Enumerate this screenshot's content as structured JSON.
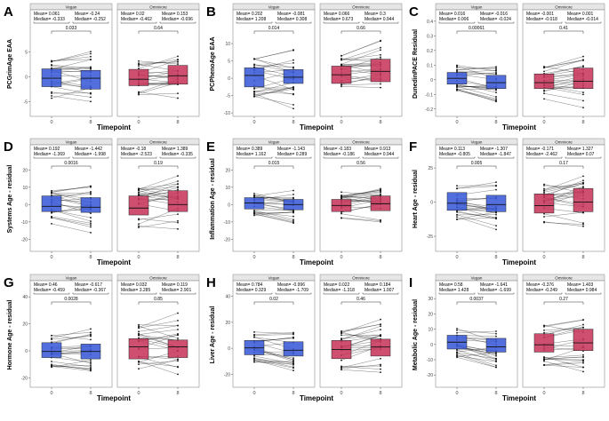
{
  "figure": {
    "x_axis_title": "Timepoint",
    "group_labels": [
      "Vegan",
      "Omnivore"
    ],
    "colors": {
      "vegan": "#3B5BD9",
      "omnivore": "#C8375C",
      "strip": "#E6E6E6",
      "border": "#8A8A8A"
    }
  },
  "chart_data": [
    {
      "type": "box",
      "panel_letter": "A",
      "ylabel": "PCGrimAge EAA",
      "categories": [
        "0",
        "8"
      ],
      "yticks": [
        -5,
        0,
        5
      ],
      "ylim": [
        -8,
        13
      ],
      "vegan": {
        "title": "Vegan",
        "stats": [
          "Mean= 0.061",
          "Mean= -0.24",
          "Median= -0.333",
          "Median= -0.252"
        ],
        "pvalue": "0.033",
        "box0": [
          -2.0,
          -0.3,
          1.6
        ],
        "box1": [
          -2.5,
          -0.3,
          1.3
        ]
      },
      "omnivore": {
        "title": "Omnivore",
        "stats": [
          "Mean= 0.02",
          "Mean= 0.153",
          "Median= -0.462",
          "Median= -0.696"
        ],
        "pvalue": "0.64",
        "box0": [
          -1.8,
          -0.5,
          1.5
        ],
        "box1": [
          -1.5,
          0.2,
          2.3
        ]
      }
    },
    {
      "type": "box",
      "panel_letter": "B",
      "ylabel": "PCPhenoAge EAA",
      "categories": [
        "0",
        "8"
      ],
      "yticks": [
        -10,
        -5,
        0,
        5,
        10
      ],
      "ylim": [
        -11,
        19
      ],
      "vegan": {
        "title": "Vegan",
        "stats": [
          "Mean= 0.202",
          "Mean= -0.081",
          "Median= 1.208",
          "Median= 0.308"
        ],
        "pvalue": "0.014",
        "box0": [
          -2.5,
          0.8,
          3.0
        ],
        "box1": [
          -1.5,
          0.3,
          2.5
        ]
      },
      "omnivore": {
        "title": "Omnivore",
        "stats": [
          "Mean= 0.066",
          "Mean= 0.3",
          "Median= 0.673",
          "Median= 0.944"
        ],
        "pvalue": "0.66",
        "box0": [
          -1.5,
          1.0,
          3.5
        ],
        "box1": [
          -1.0,
          2.0,
          5.5
        ]
      }
    },
    {
      "type": "box",
      "panel_letter": "C",
      "ylabel": "DunedinPACE Residual",
      "categories": [
        "0",
        "8"
      ],
      "yticks": [
        -0.2,
        -0.1,
        0.0,
        0.1,
        0.2,
        0.3,
        0.4
      ],
      "ylim": [
        -0.25,
        0.46
      ],
      "vegan": {
        "title": "Vegan",
        "stats": [
          "Mean= 0.016",
          "Mean= -0.016",
          "Median= 0.006",
          "Median= -0.024"
        ],
        "pvalue": "0.00061",
        "box0": [
          -0.03,
          0.01,
          0.05
        ],
        "box1": [
          -0.06,
          -0.02,
          0.03
        ]
      },
      "omnivore": {
        "title": "Omnivore",
        "stats": [
          "Mean= -0.001",
          "Mean= 0.001",
          "Median= -0.018",
          "Median= -0.014"
        ],
        "pvalue": "0.41",
        "box0": [
          -0.06,
          -0.02,
          0.04
        ],
        "box1": [
          -0.06,
          -0.01,
          0.08
        ]
      }
    },
    {
      "type": "box",
      "panel_letter": "D",
      "ylabel": "Systems Age - residual",
      "categories": [
        "0",
        "8"
      ],
      "yticks": [
        -20,
        -10,
        0,
        10,
        20
      ],
      "ylim": [
        -27,
        33
      ],
      "vegan": {
        "title": "Vegan",
        "stats": [
          "Mean= 0.192",
          "Mean= -1.442",
          "Median= -1.369",
          "Median= -1.998"
        ],
        "pvalue": "0.0016",
        "box0": [
          -4.0,
          -1.0,
          5.0
        ],
        "box1": [
          -4.5,
          -1.5,
          4.0
        ]
      },
      "omnivore": {
        "title": "Omnivore",
        "stats": [
          "Mean= -0.18",
          "Mean= 1.389",
          "Median= -2.523",
          "Median= -0.335"
        ],
        "pvalue": "0.19",
        "box0": [
          -6.0,
          -2.0,
          5.0
        ],
        "box1": [
          -4.0,
          0.0,
          8.0
        ]
      }
    },
    {
      "type": "box",
      "panel_letter": "E",
      "ylabel": "Inflammation Age - residual",
      "categories": [
        "0",
        "8"
      ],
      "yticks": [
        -20,
        -10,
        0,
        10,
        20
      ],
      "ylim": [
        -27,
        33
      ],
      "vegan": {
        "title": "Vegan",
        "stats": [
          "Mean= 0.389",
          "Mean= -1.143",
          "Median= 1.162",
          "Median= 0.289"
        ],
        "pvalue": "0.015",
        "box0": [
          -2.5,
          1.0,
          4.0
        ],
        "box1": [
          -3.0,
          0.0,
          3.0
        ]
      },
      "omnivore": {
        "title": "Omnivore",
        "stats": [
          "Mean= -0.183",
          "Mean= 0.913",
          "Median= -0.186",
          "Median= 0.944"
        ],
        "pvalue": "0.56",
        "box0": [
          -4.0,
          -0.5,
          3.0
        ],
        "box1": [
          -3.5,
          0.5,
          5.0
        ]
      }
    },
    {
      "type": "box",
      "panel_letter": "F",
      "ylabel": "Heart Age - residual",
      "categories": [
        "0",
        "8"
      ],
      "yticks": [
        -25,
        0,
        25
      ],
      "ylim": [
        -36,
        40
      ],
      "vegan": {
        "title": "Vegan",
        "stats": [
          "Mean= 0.113",
          "Mean= -1.307",
          "Median= -0.805",
          "Median= -1.847"
        ],
        "pvalue": "0.005",
        "box0": [
          -6.0,
          -0.8,
          7.0
        ],
        "box1": [
          -7.0,
          -1.8,
          5.0
        ]
      },
      "omnivore": {
        "title": "Omnivore",
        "stats": [
          "Mean= -0.171",
          "Mean= 1.327",
          "Median= -2.462",
          "Median= 0.07"
        ],
        "pvalue": "0.17",
        "box0": [
          -8.0,
          -2.5,
          6.0
        ],
        "box1": [
          -7.0,
          0.0,
          10.0
        ]
      }
    },
    {
      "type": "box",
      "panel_letter": "G",
      "ylabel": "Hormone Age - residual",
      "categories": [
        "0",
        "8"
      ],
      "yticks": [
        -20,
        0,
        20,
        40
      ],
      "ylim": [
        -27,
        50
      ],
      "vegan": {
        "title": "Vegan",
        "stats": [
          "Mean= 0.46",
          "Mean= -0.617",
          "Median= -0.459",
          "Median= -0.367"
        ],
        "pvalue": "0.0028",
        "box0": [
          -5.0,
          -0.5,
          6.0
        ],
        "box1": [
          -6.0,
          -0.5,
          5.0
        ]
      },
      "omnivore": {
        "title": "Omnivore",
        "stats": [
          "Mean= 0.032",
          "Mean= 0.119",
          "Median= 3.285",
          "Median= 2.901"
        ],
        "pvalue": "0.85",
        "box0": [
          -6.0,
          3.0,
          9.0
        ],
        "box1": [
          -5.0,
          3.0,
          8.0
        ]
      }
    },
    {
      "type": "box",
      "panel_letter": "H",
      "ylabel": "Liver Age - residual",
      "categories": [
        "0",
        "8"
      ],
      "yticks": [
        -20,
        0,
        20,
        40
      ],
      "ylim": [
        -30,
        50
      ],
      "vegan": {
        "title": "Vegan",
        "stats": [
          "Mean= 0.784",
          "Mean= -0.996",
          "Median= 0.329",
          "Median= -1.709"
        ],
        "pvalue": "0.02",
        "box0": [
          -5.0,
          0.3,
          6.0
        ],
        "box1": [
          -6.0,
          -1.5,
          5.0
        ]
      },
      "omnivore": {
        "title": "Omnivore",
        "stats": [
          "Mean= 0.022",
          "Mean= 0.184",
          "Median= -1.318",
          "Median= 1.007"
        ],
        "pvalue": "0.46",
        "box0": [
          -8.0,
          -1.0,
          6.0
        ],
        "box1": [
          -6.0,
          1.0,
          7.0
        ]
      }
    },
    {
      "type": "box",
      "panel_letter": "I",
      "ylabel": "Metabolic Age - residual",
      "categories": [
        "0",
        "8"
      ],
      "yticks": [
        -20,
        -10,
        0,
        10,
        20,
        30
      ],
      "ylim": [
        -28,
        40
      ],
      "vegan": {
        "title": "Vegan",
        "stats": [
          "Mean= 0.58",
          "Mean= -1.641",
          "Median= 1.428",
          "Median= -1.699"
        ],
        "pvalue": "0.0037",
        "box0": [
          -3.0,
          1.5,
          6.0
        ],
        "box1": [
          -5.0,
          -1.5,
          4.0
        ]
      },
      "omnivore": {
        "title": "Omnivore",
        "stats": [
          "Mean= -0.376",
          "Mean= 1.403",
          "Median= -0.249",
          "Median= 0.984"
        ],
        "pvalue": "0.27",
        "box0": [
          -5.0,
          -0.2,
          7.0
        ],
        "box1": [
          -4.0,
          1.0,
          10.0
        ]
      }
    }
  ]
}
